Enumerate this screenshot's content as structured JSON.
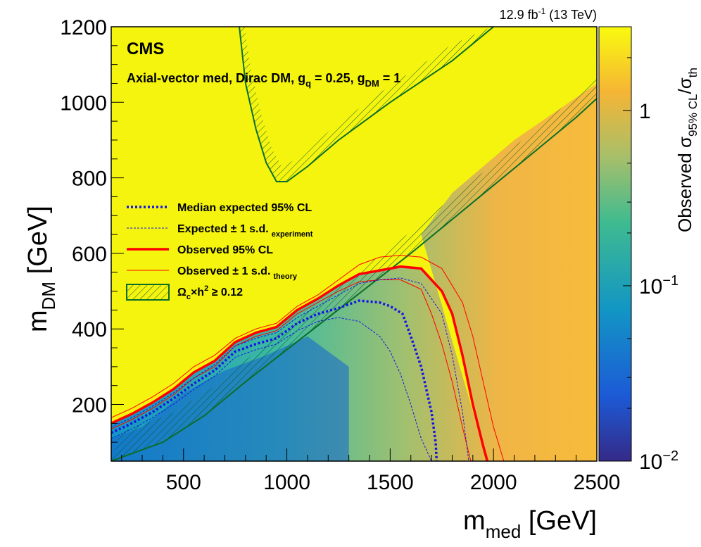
{
  "chart_data": {
    "type": "heatmap",
    "experiment": "CMS",
    "subtitle": {
      "main": "Axial-vector med, Dirac DM, g",
      "q_sub": "q",
      "mid": " = 0.25, g",
      "dm_sub": "DM",
      "end": " = 1"
    },
    "lumi": {
      "value": "12.9 fb",
      "exp": "-1",
      "energy": " (13 TeV)"
    },
    "xaxis": {
      "label_main": "m",
      "label_sub": "med",
      "label_unit": " [GeV]",
      "range": [
        150,
        2500
      ],
      "ticks": [
        500,
        1000,
        1500,
        2000,
        2500
      ]
    },
    "yaxis": {
      "label_main": "m",
      "label_sub": "DM",
      "label_unit": " [GeV]",
      "range": [
        50,
        1200
      ],
      "ticks": [
        200,
        400,
        600,
        800,
        1000,
        1200
      ]
    },
    "zaxis": {
      "label_main": "Observed  σ",
      "label_sub": "95% CL",
      "label_end": "/σ",
      "label_sub2": "th",
      "scale": "log",
      "range": [
        0.01,
        3
      ],
      "ticks": [
        {
          "value": 1,
          "base": "1",
          "exp": ""
        },
        {
          "value": 0.1,
          "base": "10",
          "exp": "−1"
        },
        {
          "value": 0.01,
          "base": "10",
          "exp": "−2"
        }
      ]
    },
    "legend": {
      "placement": "left-middle",
      "entries": [
        {
          "label": "Median expected 95% CL",
          "sub": "",
          "style": "thick-dashed",
          "color": "#1414e6"
        },
        {
          "label": "Expected ± 1 s.d.",
          "sub": "experiment",
          "style": "thin-dashed",
          "color": "#1414e6"
        },
        {
          "label": "Observed 95% CL",
          "sub": "",
          "style": "thick-solid",
          "color": "#ff0000"
        },
        {
          "label": "Observed ± 1 s.d.",
          "sub": "theory",
          "style": "thin-solid",
          "color": "#ff0000"
        },
        {
          "label": "Ω",
          "label_sub": "c",
          "label_mid": "×h",
          "label_sup": "2",
          "label_end": " ≥ 0.12",
          "style": "hatched",
          "color": "#0a6e28"
        }
      ]
    },
    "series": [
      {
        "name": "Observed 95% CL",
        "x": [
          150,
          250,
          350,
          450,
          550,
          650,
          750,
          850,
          950,
          1050,
          1150,
          1250,
          1350,
          1450,
          1550,
          1650,
          1750,
          1800,
          1850,
          1900,
          1950,
          1970
        ],
        "y": [
          150,
          175,
          205,
          240,
          285,
          315,
          365,
          390,
          405,
          450,
          480,
          515,
          545,
          555,
          565,
          560,
          500,
          440,
          330,
          200,
          90,
          50
        ]
      },
      {
        "name": "Observed -1 s.d. (theory)",
        "x": [
          150,
          250,
          350,
          450,
          550,
          650,
          750,
          850,
          950,
          1050,
          1150,
          1250,
          1350,
          1450,
          1550,
          1650,
          1700,
          1750,
          1800,
          1850,
          1890
        ],
        "y": [
          135,
          160,
          190,
          225,
          270,
          300,
          355,
          380,
          395,
          440,
          470,
          500,
          525,
          530,
          530,
          505,
          440,
          360,
          260,
          140,
          50
        ]
      },
      {
        "name": "Observed +1 s.d. (theory)",
        "x": [
          150,
          250,
          350,
          450,
          550,
          650,
          750,
          850,
          950,
          1050,
          1150,
          1250,
          1350,
          1450,
          1550,
          1650,
          1750,
          1850,
          1900,
          1950,
          2000,
          2050
        ],
        "y": [
          165,
          190,
          220,
          255,
          300,
          330,
          375,
          400,
          415,
          460,
          490,
          530,
          570,
          590,
          595,
          590,
          560,
          470,
          380,
          260,
          140,
          50
        ]
      },
      {
        "name": "Median expected 95% CL",
        "x": [
          150,
          250,
          350,
          450,
          550,
          650,
          750,
          850,
          950,
          1050,
          1150,
          1250,
          1350,
          1450,
          1500,
          1560,
          1600,
          1650,
          1700,
          1720,
          1725
        ],
        "y": [
          125,
          150,
          180,
          215,
          255,
          290,
          340,
          360,
          375,
          415,
          440,
          455,
          475,
          470,
          460,
          440,
          380,
          300,
          180,
          100,
          50
        ]
      },
      {
        "name": "Expected -1 s.d.",
        "x": [
          150,
          250,
          350,
          450,
          550,
          650,
          750,
          850,
          950,
          1050,
          1150,
          1250,
          1350,
          1450,
          1500,
          1550,
          1600,
          1650,
          1700
        ],
        "y": [
          110,
          135,
          165,
          200,
          240,
          275,
          325,
          345,
          360,
          395,
          420,
          430,
          420,
          380,
          340,
          280,
          200,
          110,
          50
        ]
      },
      {
        "name": "Expected +1 s.d.",
        "x": [
          150,
          250,
          350,
          450,
          550,
          650,
          750,
          850,
          950,
          1050,
          1150,
          1250,
          1350,
          1450,
          1550,
          1650,
          1750,
          1800,
          1850,
          1880
        ],
        "y": [
          140,
          165,
          195,
          230,
          270,
          305,
          355,
          375,
          390,
          430,
          460,
          490,
          520,
          530,
          535,
          520,
          440,
          330,
          180,
          50
        ]
      }
    ],
    "relic": {
      "name": "Ωc×h² ≥ 0.12",
      "upper_branch": {
        "x": [
          150,
          400,
          600,
          800,
          1000,
          1200,
          1400,
          1600,
          1800,
          2000,
          2200,
          2400,
          2500
        ],
        "y": [
          50,
          100,
          170,
          260,
          345,
          430,
          515,
          600,
          690,
          780,
          870,
          960,
          1010
        ]
      },
      "v_region": {
        "x": [
          770,
          800,
          850,
          900,
          950,
          1000,
          1100,
          1250,
          1500,
          1800,
          2000
        ],
        "y": [
          1200,
          1050,
          930,
          840,
          790,
          790,
          830,
          900,
          1000,
          1110,
          1200
        ]
      }
    }
  }
}
